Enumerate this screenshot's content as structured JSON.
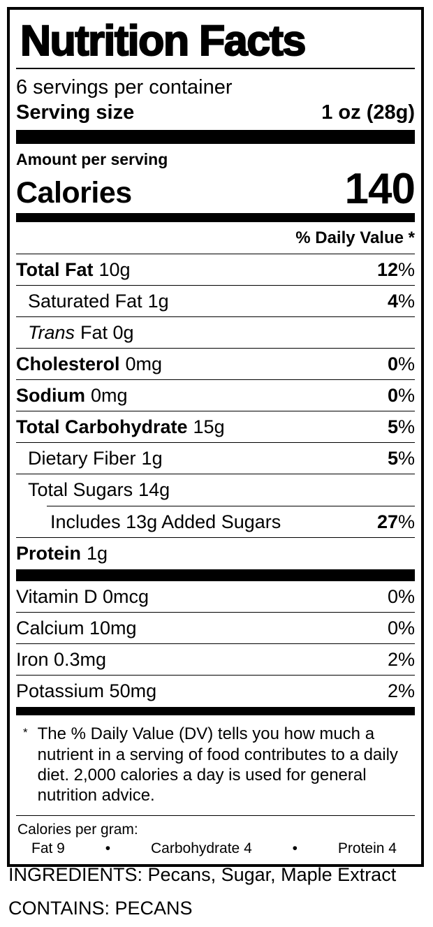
{
  "label": {
    "title": "Nutrition Facts",
    "servings_per_container": "6 servings per container",
    "serving_size": {
      "label": "Serving size",
      "value": "1 oz (28g)"
    },
    "amount_per_serving": "Amount per serving",
    "calories": {
      "label": "Calories",
      "value": "140"
    },
    "daily_value_header": "% Daily Value *",
    "nutrients": [
      {
        "name": "Total Fat",
        "amount": "10g",
        "dv_num": "12",
        "dv_unit": "%"
      },
      {
        "name": "Saturated Fat",
        "amount": "1g",
        "dv_num": "4",
        "dv_unit": "%"
      },
      {
        "name": "Trans",
        "amount": "Fat 0g"
      },
      {
        "name": "Cholesterol",
        "amount": "0mg",
        "dv_num": "0",
        "dv_unit": "%"
      },
      {
        "name": "Sodium",
        "amount": "0mg",
        "dv_num": "0",
        "dv_unit": "%"
      },
      {
        "name": "Total Carbohydrate",
        "amount": "15g",
        "dv_num": "5",
        "dv_unit": "%"
      },
      {
        "name": "Dietary Fiber",
        "amount": "1g",
        "dv_num": "5",
        "dv_unit": "%"
      },
      {
        "name": "Total Sugars",
        "amount": "14g"
      },
      {
        "name": "Includes 13g Added Sugars",
        "dv_num": "27",
        "dv_unit": "%"
      },
      {
        "name": "Protein",
        "amount": "1g"
      }
    ],
    "micronutrients": [
      {
        "name": "Vitamin D 0mcg",
        "dv": "0%"
      },
      {
        "name": "Calcium 10mg",
        "dv": "0%"
      },
      {
        "name": "Iron 0.3mg",
        "dv": "2%"
      },
      {
        "name": "Potassium 50mg",
        "dv": "2%"
      }
    ],
    "footnote": {
      "marker": "*",
      "text": "The % Daily Value (DV) tells you how much a nutrient in a serving of food contributes to a daily diet. 2,000 calories a day is used for general nutrition advice."
    },
    "calories_per_gram": {
      "heading": "Calories per gram:",
      "items": [
        "Fat 9",
        "Carbohydrate 4",
        "Protein 4"
      ],
      "separator": "•"
    }
  },
  "ingredients_line": "INGREDIENTS: Pecans, Sugar, Maple Extract",
  "contains_line": "CONTAINS: PECANS"
}
